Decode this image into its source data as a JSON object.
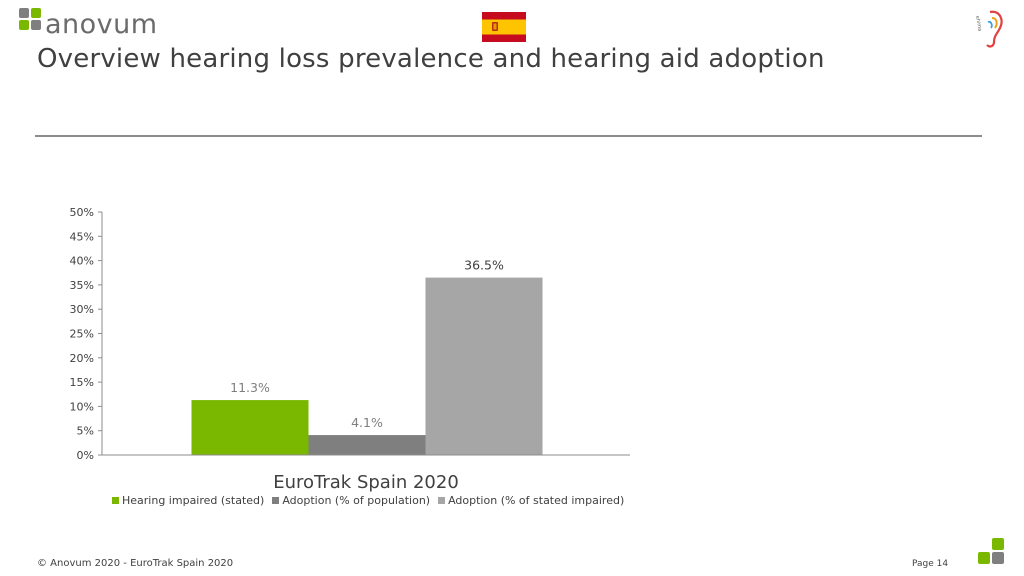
{
  "header": {
    "brand": "anovum",
    "title": "Overview hearing loss prevalence and hearing aid adoption",
    "ehima_logo_text": "ehima"
  },
  "chart_data": {
    "type": "bar",
    "categories": [
      "EuroTrak Spain 2020"
    ],
    "series": [
      {
        "name": "Hearing impaired (stated)",
        "values": [
          11.3
        ],
        "label": "11.3%",
        "color": "#7ab800"
      },
      {
        "name": "Adoption (% of population)",
        "values": [
          4.1
        ],
        "label": "4.1%",
        "color": "#7f7f7f"
      },
      {
        "name": "Adoption (% of stated impaired)",
        "values": [
          36.5
        ],
        "label": "36.5%",
        "color": "#a6a6a6"
      }
    ],
    "ylim": [
      0,
      50
    ],
    "yticks": [
      "0%",
      "5%",
      "10%",
      "15%",
      "20%",
      "25%",
      "30%",
      "35%",
      "40%",
      "45%",
      "50%"
    ],
    "legend_position": "bottom",
    "grid": false
  },
  "footer": {
    "copyright": "© Anovum 2020 - EuroTrak Spain 2020",
    "page": "Page 14"
  },
  "colors": {
    "brand_green": "#7ab800",
    "brand_gray": "#6b6b6b"
  }
}
